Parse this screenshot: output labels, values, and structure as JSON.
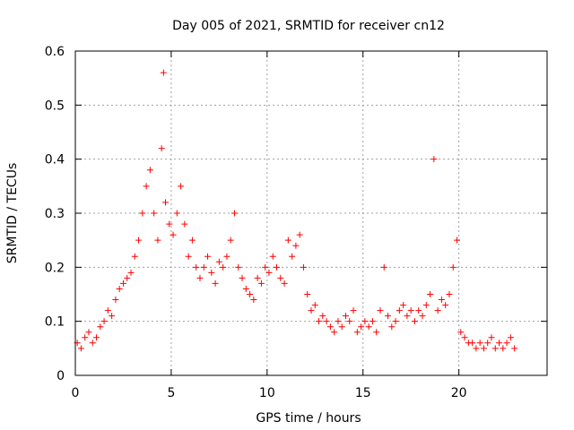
{
  "chart_data": {
    "type": "scatter",
    "title": "Day 005 of 2021, SRMTID for receiver cn12",
    "xlabel": "GPS time / hours",
    "ylabel": "SRMTID / TECUs",
    "xlim": [
      0,
      24.6
    ],
    "ylim": [
      0,
      0.6
    ],
    "xticks": [
      0,
      5,
      10,
      15,
      20
    ],
    "xtick_labels": [
      "0",
      "5",
      "10",
      "15",
      "20"
    ],
    "yticks": [
      0,
      0.1,
      0.2,
      0.3,
      0.4,
      0.5,
      0.6
    ],
    "ytick_labels": [
      "0",
      "0.1",
      "0.2",
      "0.3",
      "0.4",
      "0.5",
      "0.6"
    ],
    "grid": true,
    "marker": "+",
    "color": "#ff0000",
    "series": [
      {
        "name": "SRMTID",
        "x": [
          0.1,
          0.3,
          0.5,
          0.7,
          0.9,
          1.1,
          1.3,
          1.5,
          1.7,
          1.9,
          2.1,
          2.3,
          2.5,
          2.7,
          2.9,
          3.1,
          3.3,
          3.5,
          3.7,
          3.9,
          4.1,
          4.3,
          4.5,
          4.6,
          4.7,
          4.9,
          5.1,
          5.3,
          5.5,
          5.7,
          5.9,
          6.1,
          6.3,
          6.5,
          6.7,
          6.9,
          7.1,
          7.3,
          7.5,
          7.7,
          7.9,
          8.1,
          8.3,
          8.5,
          8.7,
          8.9,
          9.1,
          9.3,
          9.5,
          9.7,
          9.9,
          10.1,
          10.3,
          10.5,
          10.7,
          10.9,
          11.1,
          11.3,
          11.5,
          11.7,
          11.9,
          12.1,
          12.3,
          12.5,
          12.7,
          12.9,
          13.1,
          13.3,
          13.5,
          13.7,
          13.9,
          14.1,
          14.3,
          14.5,
          14.7,
          14.9,
          15.1,
          15.3,
          15.5,
          15.7,
          15.9,
          16.1,
          16.3,
          16.5,
          16.7,
          16.9,
          17.1,
          17.3,
          17.5,
          17.7,
          17.9,
          18.1,
          18.3,
          18.5,
          18.7,
          18.9,
          19.1,
          19.3,
          19.5,
          19.7,
          19.9,
          20.1,
          20.3,
          20.5,
          20.7,
          20.9,
          21.1,
          21.3,
          21.5,
          21.7,
          21.9,
          22.1,
          22.3,
          22.5,
          22.7,
          22.9
        ],
        "y": [
          0.06,
          0.05,
          0.07,
          0.08,
          0.06,
          0.07,
          0.09,
          0.1,
          0.12,
          0.11,
          0.14,
          0.16,
          0.17,
          0.18,
          0.19,
          0.22,
          0.25,
          0.3,
          0.35,
          0.38,
          0.3,
          0.25,
          0.42,
          0.56,
          0.32,
          0.28,
          0.26,
          0.3,
          0.35,
          0.28,
          0.22,
          0.25,
          0.2,
          0.18,
          0.2,
          0.22,
          0.19,
          0.17,
          0.21,
          0.2,
          0.22,
          0.25,
          0.3,
          0.2,
          0.18,
          0.16,
          0.15,
          0.14,
          0.18,
          0.17,
          0.2,
          0.19,
          0.22,
          0.2,
          0.18,
          0.17,
          0.25,
          0.22,
          0.24,
          0.26,
          0.2,
          0.15,
          0.12,
          0.13,
          0.1,
          0.11,
          0.1,
          0.09,
          0.08,
          0.1,
          0.09,
          0.11,
          0.1,
          0.12,
          0.08,
          0.09,
          0.1,
          0.09,
          0.1,
          0.08,
          0.12,
          0.2,
          0.11,
          0.09,
          0.1,
          0.12,
          0.13,
          0.11,
          0.12,
          0.1,
          0.12,
          0.11,
          0.13,
          0.15,
          0.4,
          0.12,
          0.14,
          0.13,
          0.15,
          0.2,
          0.25,
          0.08,
          0.07,
          0.06,
          0.06,
          0.05,
          0.06,
          0.05,
          0.06,
          0.07,
          0.05,
          0.06,
          0.05,
          0.06,
          0.07,
          0.05
        ]
      }
    ]
  }
}
